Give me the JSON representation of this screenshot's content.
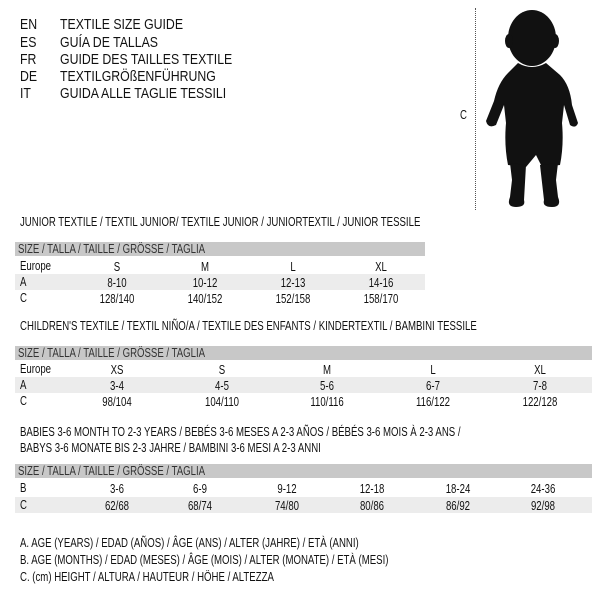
{
  "languages": [
    {
      "code": "EN",
      "title": "TEXTILE SIZE GUIDE"
    },
    {
      "code": "ES",
      "title": "GUÍA DE TALLAS"
    },
    {
      "code": "FR",
      "title": "GUIDE DES TAILLES TEXTILE"
    },
    {
      "code": "DE",
      "title": "TEXTILGRÖßENFÜHRUNG"
    },
    {
      "code": "IT",
      "title": "GUIDA ALLE TAGLIE TESSILI"
    }
  ],
  "figure": {
    "measure_label": "C",
    "icon": "child-silhouette-icon"
  },
  "size_header": "SIZE / TALLA / TAILLE / GRÖSSE / TAGLIA",
  "junior": {
    "title": "JUNIOR TEXTILE / TEXTIL JUNIOR/ TEXTILE JUNIOR / JUNIORTEXTIL / JUNIOR TESSILE",
    "rows": [
      [
        "Europe",
        "S",
        "M",
        "L",
        "XL"
      ],
      [
        "A",
        "8-10",
        "10-12",
        "12-13",
        "14-16"
      ],
      [
        "C",
        "128/140",
        "140/152",
        "152/158",
        "158/170"
      ]
    ]
  },
  "children": {
    "title": "CHILDREN'S TEXTILE / TEXTIL NIÑO/A / TEXTILE DES ENFANTS / KINDERTEXTIL / BAMBINI TESSILE",
    "rows": [
      [
        "Europe",
        "XS",
        "S",
        "M",
        "L",
        "XL"
      ],
      [
        "A",
        "3-4",
        "4-5",
        "5-6",
        "6-7",
        "7-8"
      ],
      [
        "C",
        "98/104",
        "104/110",
        "110/116",
        "116/122",
        "122/128"
      ]
    ]
  },
  "babies": {
    "title_line1": "BABIES 3-6 MONTH TO 2-3 YEARS / BEBÉS 3-6 MESES A 2-3 AÑOS / BÉBÉS 3-6 MOIS À 2-3 ANS /",
    "title_line2": "BABYS 3-6 MONATE BIS 2-3 JAHRE / BAMBINI 3-6 MESI A 2-3 ANNI",
    "rows": [
      [
        "B",
        "3-6",
        "6-9",
        "9-12",
        "12-18",
        "18-24",
        "24-36"
      ],
      [
        "C",
        "62/68",
        "68/74",
        "74/80",
        "80/86",
        "86/92",
        "92/98"
      ]
    ]
  },
  "legend": [
    "A. AGE (YEARS) / EDAD (AÑOS) / ÂGE (ANS) / ALTER (JAHRE) / ETÀ (ANNI)",
    "B. AGE (MONTHS) / EDAD (MESES) / ÂGE (MOIS) / ALTER (MONATE) / ETÀ (MESI)",
    "C. (cm) HEIGHT / ALTURA / HAUTEUR / HÖHE / ALTEZZA"
  ]
}
